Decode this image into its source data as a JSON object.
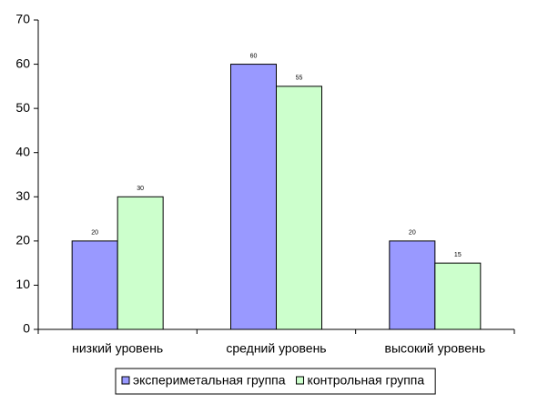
{
  "chart_data": {
    "type": "bar",
    "categories": [
      "низкий уровень",
      "средний уровень",
      "высокий уровень"
    ],
    "series": [
      {
        "name": "экспериметальная группа",
        "color": "#9999ff",
        "values": [
          20,
          60,
          20
        ]
      },
      {
        "name": "контрольная группа",
        "color": "#ccffcc",
        "values": [
          30,
          55,
          15
        ]
      }
    ],
    "ylim": [
      0,
      70
    ],
    "yticks": [
      0,
      10,
      20,
      30,
      40,
      50,
      60,
      70
    ],
    "grid": false,
    "legend": "bottom",
    "data_labels": true
  }
}
